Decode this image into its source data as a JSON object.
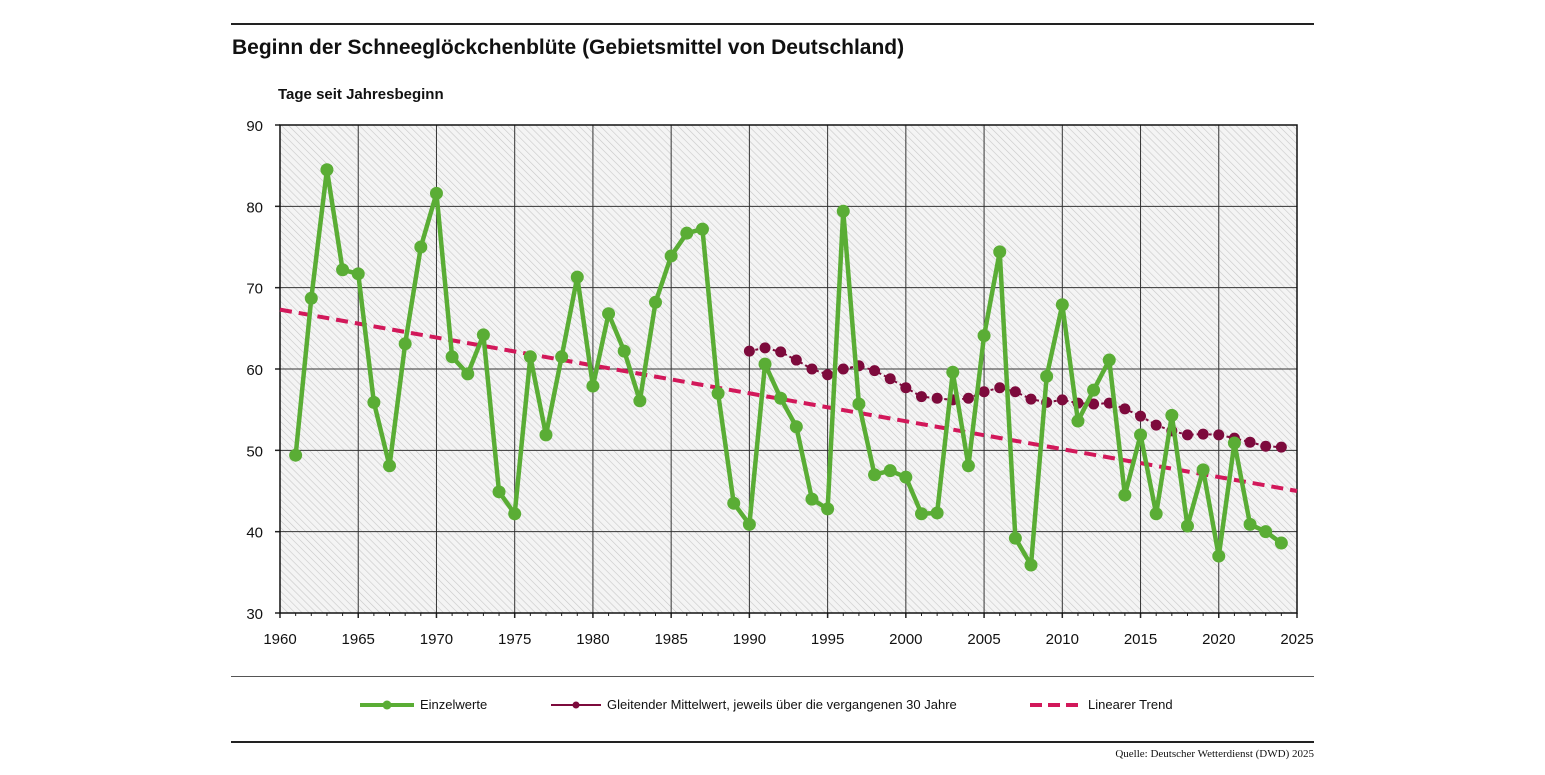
{
  "chart_data": {
    "type": "line",
    "title": "Beginn der Schneeglöckchenblüte (Gebietsmittel von Deutschland)",
    "ylabel": "Tage seit Jahresbeginn",
    "xlabel": "",
    "xlim": [
      1960,
      2025
    ],
    "ylim": [
      30,
      90
    ],
    "xticks": [
      1960,
      1965,
      1970,
      1975,
      1980,
      1985,
      1990,
      1995,
      2000,
      2005,
      2010,
      2015,
      2020,
      2025
    ],
    "yticks": [
      30,
      40,
      50,
      60,
      70,
      80,
      90
    ],
    "grid": true,
    "legend_position": "bottom",
    "series": [
      {
        "name": "Einzelwerte",
        "color": "#5aad35",
        "x": [
          1961,
          1962,
          1963,
          1964,
          1965,
          1966,
          1967,
          1968,
          1969,
          1970,
          1971,
          1972,
          1973,
          1974,
          1975,
          1976,
          1977,
          1978,
          1979,
          1980,
          1981,
          1982,
          1983,
          1984,
          1985,
          1986,
          1987,
          1988,
          1989,
          1990,
          1991,
          1992,
          1993,
          1994,
          1995,
          1996,
          1997,
          1998,
          1999,
          2000,
          2001,
          2002,
          2003,
          2004,
          2005,
          2006,
          2007,
          2008,
          2009,
          2010,
          2011,
          2012,
          2013,
          2014,
          2015,
          2016,
          2017,
          2018,
          2019,
          2020,
          2021,
          2022,
          2023,
          2024
        ],
        "values": [
          49.4,
          68.7,
          84.5,
          72.2,
          71.7,
          55.9,
          48.1,
          63.1,
          75.0,
          81.6,
          61.5,
          59.4,
          64.2,
          44.9,
          42.2,
          61.5,
          51.9,
          61.5,
          71.3,
          57.9,
          66.8,
          62.2,
          56.1,
          68.2,
          73.9,
          76.7,
          77.2,
          57.0,
          43.5,
          40.9,
          60.6,
          56.4,
          52.9,
          44.0,
          42.8,
          79.4,
          55.7,
          47.0,
          47.5,
          46.7,
          42.2,
          42.3,
          59.6,
          48.1,
          64.1,
          74.4,
          39.2,
          35.9,
          59.1,
          67.9,
          53.6,
          57.4,
          61.1,
          44.5,
          51.9,
          42.2,
          54.3,
          40.7,
          47.6,
          37.0,
          50.9,
          40.9,
          40.0,
          38.6
        ]
      },
      {
        "name": "Gleitender Mittelwert, jeweils über die vergangenen 30 Jahre",
        "color": "#7d0a3c",
        "x": [
          1990,
          1991,
          1992,
          1993,
          1994,
          1995,
          1996,
          1997,
          1998,
          1999,
          2000,
          2001,
          2002,
          2003,
          2004,
          2005,
          2006,
          2007,
          2008,
          2009,
          2010,
          2011,
          2012,
          2013,
          2014,
          2015,
          2016,
          2017,
          2018,
          2019,
          2020,
          2021,
          2022,
          2023,
          2024
        ],
        "values": [
          62.2,
          62.6,
          62.1,
          61.1,
          60.0,
          59.3,
          60.0,
          60.4,
          59.8,
          58.8,
          57.7,
          56.6,
          56.4,
          56.2,
          56.4,
          57.2,
          57.7,
          57.2,
          56.3,
          55.9,
          56.2,
          55.8,
          55.7,
          55.8,
          55.1,
          54.2,
          53.1,
          52.4,
          51.9,
          52.0,
          51.9,
          51.5,
          51.0,
          50.5,
          50.4
        ]
      },
      {
        "name": "Linearer Trend",
        "color": "#d2185a",
        "x": [
          1960,
          2025
        ],
        "values": [
          67.3,
          45.0
        ]
      }
    ]
  },
  "legend": {
    "items": [
      "Einzelwerte",
      "Gleitender Mittelwert, jeweils über die vergangenen 30 Jahre",
      "Linearer Trend"
    ]
  },
  "source": "Quelle: Deutscher Wetterdienst (DWD) 2025"
}
